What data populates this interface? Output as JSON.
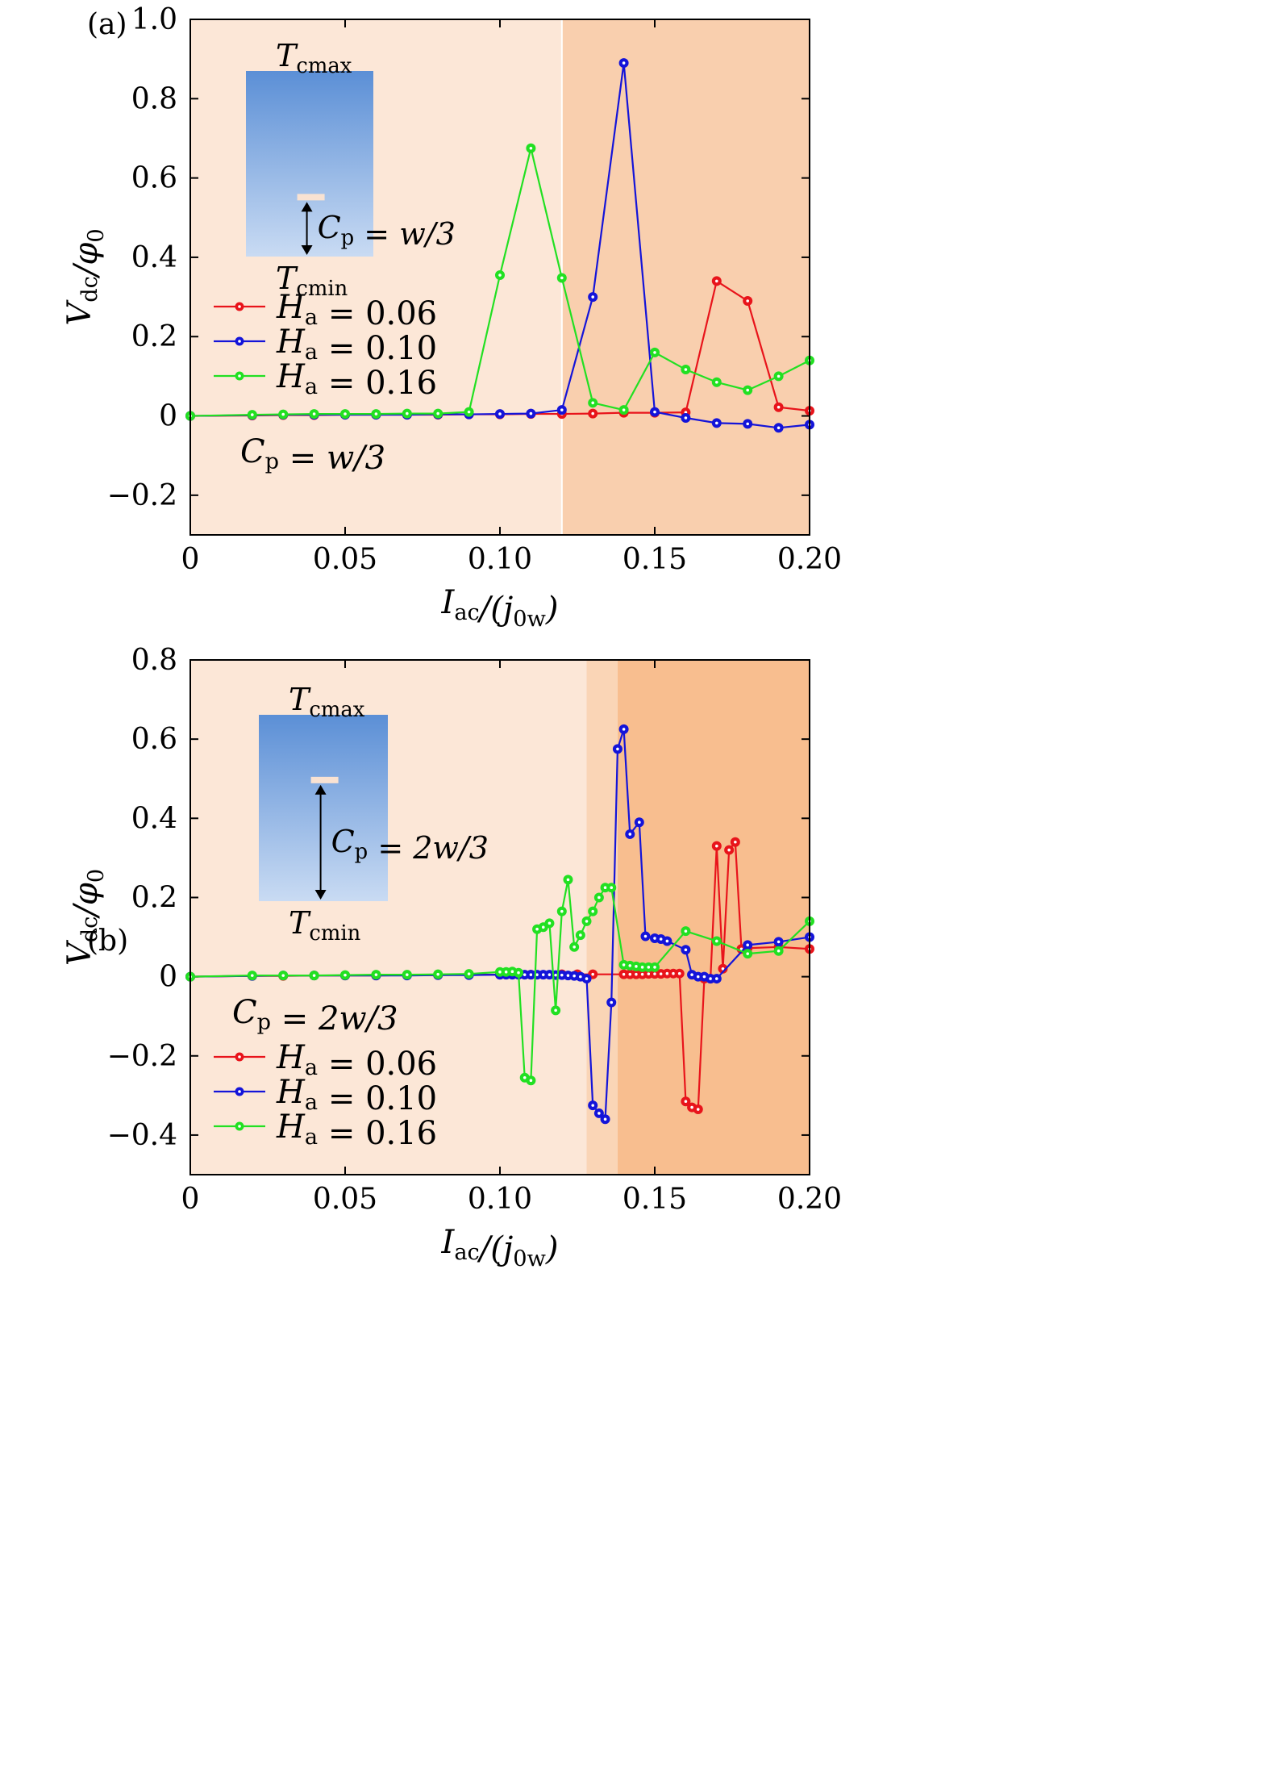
{
  "chart_data": [
    {
      "type": "line",
      "panel_label": "(a)",
      "xlim": [
        0,
        0.2
      ],
      "ylim": [
        -0.3,
        1.0
      ],
      "x_ticks": [
        0,
        0.05,
        0.1,
        0.15,
        0.2
      ],
      "x_tick_labels": [
        "0",
        "0.05",
        "0.10",
        "0.15",
        "0.20"
      ],
      "y_ticks": [
        -0.2,
        0,
        0.2,
        0.4,
        0.6,
        0.8,
        1.0
      ],
      "y_tick_labels": [
        "−0.2",
        "0",
        "0.2",
        "0.4",
        "0.6",
        "0.8",
        "1.0"
      ],
      "xlabel": "I_ac/(j_0w)",
      "ylabel": "V_dc/φ_0",
      "regions": [
        {
          "x_from": 0,
          "x_to": 0.12,
          "color": "#fce7d7"
        },
        {
          "x_from": 0.12,
          "x_to": 0.2,
          "color": "#f9cfae"
        }
      ],
      "annotation": "C_p = w/3",
      "inset": {
        "top_label": "T_cmax",
        "bottom_label": "T_cmin",
        "arrow_label": "C_p = w/3",
        "cut_fraction": 0.68
      },
      "legend_position": "left-middle",
      "series": [
        {
          "name": "H_a = 0.06",
          "color": "#e8141b",
          "x": [
            0,
            0.02,
            0.03,
            0.04,
            0.05,
            0.06,
            0.07,
            0.08,
            0.09,
            0.1,
            0.11,
            0.12,
            0.13,
            0.14,
            0.15,
            0.16,
            0.17,
            0.18,
            0.19,
            0.2
          ],
          "y": [
            0,
            0.001,
            0.002,
            0.002,
            0.003,
            0.003,
            0.003,
            0.003,
            0.004,
            0.004,
            0.005,
            0.005,
            0.006,
            0.008,
            0.008,
            0.009,
            0.34,
            0.29,
            0.022,
            0.013
          ]
        },
        {
          "name": "H_a = 0.10",
          "color": "#1414d9",
          "x": [
            0,
            0.02,
            0.03,
            0.04,
            0.05,
            0.06,
            0.07,
            0.08,
            0.09,
            0.1,
            0.11,
            0.12,
            0.13,
            0.14,
            0.15,
            0.16,
            0.17,
            0.18,
            0.19,
            0.2
          ],
          "y": [
            0,
            0.002,
            0.003,
            0.003,
            0.003,
            0.003,
            0.003,
            0.004,
            0.004,
            0.005,
            0.006,
            0.015,
            0.3,
            0.89,
            0.01,
            -0.005,
            -0.018,
            -0.02,
            -0.03,
            -0.022
          ]
        },
        {
          "name": "H_a = 0.16",
          "color": "#22e022",
          "x": [
            0,
            0.02,
            0.03,
            0.04,
            0.05,
            0.06,
            0.07,
            0.08,
            0.09,
            0.1,
            0.11,
            0.12,
            0.13,
            0.14,
            0.15,
            0.16,
            0.17,
            0.18,
            0.19,
            0.2
          ],
          "y": [
            0,
            0.003,
            0.004,
            0.005,
            0.005,
            0.005,
            0.006,
            0.006,
            0.01,
            0.355,
            0.675,
            0.348,
            0.033,
            0.015,
            0.16,
            0.117,
            0.085,
            0.065,
            0.1,
            0.14
          ]
        }
      ]
    },
    {
      "type": "line",
      "panel_label": "(b)",
      "xlim": [
        0,
        0.2
      ],
      "ylim": [
        -0.5,
        0.8
      ],
      "x_ticks": [
        0,
        0.05,
        0.1,
        0.15,
        0.2
      ],
      "x_tick_labels": [
        "0",
        "0.05",
        "0.10",
        "0.15",
        "0.20"
      ],
      "y_ticks": [
        -0.4,
        -0.2,
        0,
        0.2,
        0.4,
        0.6,
        0.8
      ],
      "y_tick_labels": [
        "−0.4",
        "−0.2",
        "0",
        "0.2",
        "0.4",
        "0.6",
        "0.8"
      ],
      "xlabel": "I_ac/(j_0w)",
      "ylabel": "V_dc/φ_0",
      "regions": [
        {
          "x_from": 0,
          "x_to": 0.128,
          "color": "#fce7d7"
        },
        {
          "x_from": 0.128,
          "x_to": 0.138,
          "color": "#fad5b6"
        },
        {
          "x_from": 0.138,
          "x_to": 0.2,
          "color": "#f8be8f"
        }
      ],
      "annotation": "C_p = 2w/3",
      "inset": {
        "top_label": "T_cmax",
        "bottom_label": "T_cmin",
        "arrow_label": "C_p = 2w/3",
        "cut_fraction": 0.35
      },
      "legend_position": "bottom-left",
      "series": [
        {
          "name": "H_a = 0.06",
          "color": "#e8141b",
          "x": [
            0,
            0.02,
            0.03,
            0.04,
            0.05,
            0.06,
            0.07,
            0.08,
            0.09,
            0.1,
            0.11,
            0.12,
            0.125,
            0.13,
            0.14,
            0.142,
            0.144,
            0.146,
            0.148,
            0.15,
            0.152,
            0.154,
            0.156,
            0.158,
            0.16,
            0.162,
            0.164,
            0.166,
            0.168,
            0.17,
            0.172,
            0.174,
            0.176,
            0.178,
            0.18,
            0.19,
            0.2
          ],
          "y": [
            0,
            0.002,
            0.002,
            0.003,
            0.003,
            0.003,
            0.004,
            0.004,
            0.005,
            0.005,
            0.005,
            0.006,
            0.006,
            0.006,
            0.006,
            0.006,
            0.006,
            0.006,
            0.007,
            0.007,
            0.007,
            0.008,
            0.008,
            0.008,
            -0.315,
            -0.33,
            -0.335,
            -0.005,
            -0.005,
            0.33,
            0.02,
            0.32,
            0.34,
            0.07,
            0.072,
            0.075,
            0.07
          ]
        },
        {
          "name": "H_a = 0.10",
          "color": "#1414d9",
          "x": [
            0,
            0.02,
            0.03,
            0.04,
            0.05,
            0.06,
            0.07,
            0.08,
            0.09,
            0.1,
            0.102,
            0.104,
            0.106,
            0.108,
            0.11,
            0.112,
            0.114,
            0.116,
            0.118,
            0.12,
            0.122,
            0.124,
            0.126,
            0.128,
            0.13,
            0.132,
            0.134,
            0.136,
            0.138,
            0.14,
            0.142,
            0.145,
            0.147,
            0.15,
            0.152,
            0.154,
            0.16,
            0.162,
            0.164,
            0.166,
            0.168,
            0.17,
            0.18,
            0.19,
            0.2
          ],
          "y": [
            0,
            0.002,
            0.003,
            0.003,
            0.003,
            0.003,
            0.003,
            0.004,
            0.004,
            0.005,
            0.005,
            0.005,
            0.005,
            0.005,
            0.005,
            0.005,
            0.005,
            0.005,
            0.004,
            0.004,
            0.003,
            0.002,
            0.0,
            -0.005,
            -0.325,
            -0.345,
            -0.36,
            -0.065,
            0.575,
            0.625,
            0.36,
            0.39,
            0.102,
            0.097,
            0.095,
            0.09,
            0.068,
            0.005,
            0.0,
            0.0,
            -0.005,
            -0.005,
            0.08,
            0.088,
            0.1
          ]
        },
        {
          "name": "H_a = 0.16",
          "color": "#22e022",
          "x": [
            0,
            0.02,
            0.03,
            0.04,
            0.05,
            0.06,
            0.07,
            0.08,
            0.09,
            0.1,
            0.102,
            0.104,
            0.106,
            0.108,
            0.11,
            0.112,
            0.114,
            0.116,
            0.118,
            0.12,
            0.122,
            0.124,
            0.126,
            0.128,
            0.13,
            0.132,
            0.134,
            0.136,
            0.14,
            0.142,
            0.144,
            0.146,
            0.148,
            0.15,
            0.16,
            0.17,
            0.18,
            0.19,
            0.2
          ],
          "y": [
            0,
            0.003,
            0.003,
            0.003,
            0.004,
            0.005,
            0.005,
            0.006,
            0.007,
            0.012,
            0.012,
            0.013,
            0.01,
            -0.255,
            -0.262,
            0.12,
            0.125,
            0.135,
            -0.085,
            0.165,
            0.245,
            0.075,
            0.105,
            0.14,
            0.165,
            0.2,
            0.225,
            0.225,
            0.03,
            0.028,
            0.026,
            0.024,
            0.024,
            0.024,
            0.115,
            0.09,
            0.058,
            0.065,
            0.14
          ]
        }
      ]
    }
  ]
}
